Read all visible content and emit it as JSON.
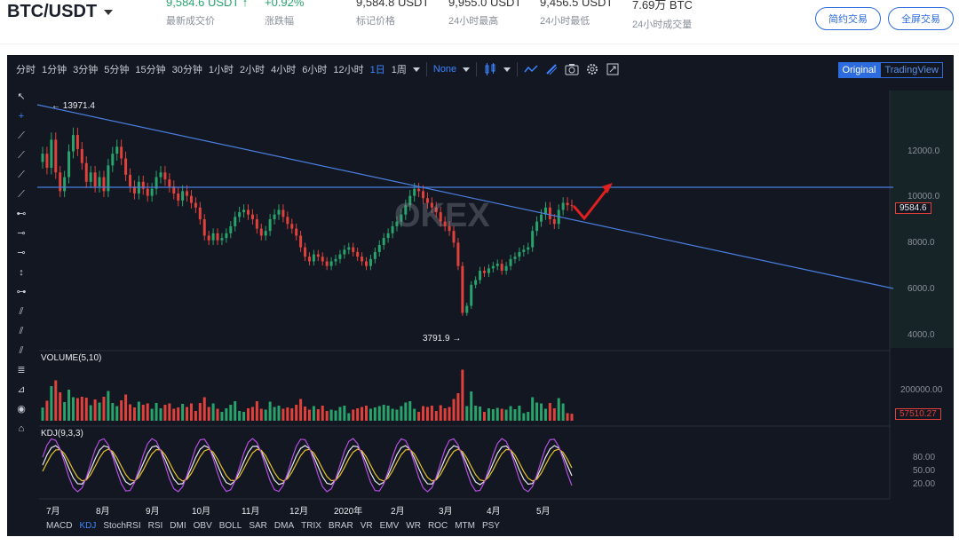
{
  "header": {
    "pair": "BTC/USDT",
    "stats": [
      {
        "value": "9,584.6 USDT ↑",
        "label": "最新成交价",
        "green": true
      },
      {
        "value": "+0.92%",
        "label": "涨跌幅",
        "green": true
      },
      {
        "value": "9,584.8 USDT",
        "label": "标记价格"
      },
      {
        "value": "9,955.0 USDT",
        "label": "24小时最高"
      },
      {
        "value": "9,456.5 USDT",
        "label": "24小时最低"
      },
      {
        "value": "7.69万 BTC",
        "label": "24小时成交量"
      }
    ],
    "btn_contract": "简约交易",
    "btn_fullscreen": "全屏交易"
  },
  "toolbar": {
    "intervals": [
      "分时",
      "1分钟",
      "3分钟",
      "5分钟",
      "15分钟",
      "30分钟",
      "1小时",
      "2小时",
      "4小时",
      "6小时",
      "12小时",
      "1日",
      "1周"
    ],
    "active_interval": "1日",
    "indicator": "None",
    "view_original": "Original",
    "view_tv": "TradingView"
  },
  "chart": {
    "high_label": "← 13971.4",
    "low_label": "3791.9 →",
    "price_ticks": [
      "12000.0",
      "10000.0",
      "8000.0",
      "6000.0",
      "4000.0"
    ],
    "last_price": "9584.6",
    "volume_title": "VOLUME(5,10)",
    "volume_tick": "200000.00",
    "volume_last": "57510.27",
    "kdj_title": "KDJ(9,3,3)",
    "kdj_ticks": [
      "80.00",
      "50.00",
      "20.00"
    ],
    "watermark": "OKEX"
  },
  "x_axis": [
    "7月",
    "8月",
    "9月",
    "10月",
    "11月",
    "12月",
    "2020年",
    "2月",
    "3月",
    "4月",
    "5月"
  ],
  "indicators": [
    "MACD",
    "KDJ",
    "StochRSI",
    "RSI",
    "DMI",
    "OBV",
    "BOLL",
    "SAR",
    "DMA",
    "TRIX",
    "BRAR",
    "VR",
    "EMV",
    "WR",
    "ROC",
    "MTM",
    "PSY"
  ],
  "active_indicator": "KDJ",
  "chart_data": {
    "type": "candlestick",
    "y_range": [
      3500,
      14500
    ],
    "closes": [
      11800,
      11200,
      12400,
      11000,
      10200,
      10800,
      11900,
      12600,
      12000,
      11400,
      10600,
      11000,
      10400,
      10800,
      10200,
      11300,
      11800,
      12100,
      11600,
      10900,
      10400,
      10100,
      10600,
      10300,
      10000,
      10300,
      10800,
      11000,
      10700,
      10400,
      10100,
      9800,
      10200,
      10000,
      9700,
      9500,
      9000,
      8300,
      8100,
      8400,
      8100,
      8200,
      8400,
      8700,
      9100,
      9300,
      9400,
      9200,
      9000,
      8600,
      8300,
      8500,
      9000,
      9200,
      9400,
      9100,
      8800,
      8600,
      8300,
      7800,
      7400,
      7200,
      7500,
      7400,
      7200,
      7000,
      7200,
      7300,
      7500,
      7700,
      7800,
      7600,
      7400,
      7200,
      7000,
      7300,
      7600,
      7900,
      8200,
      8400,
      8700,
      8900,
      9200,
      9600,
      10000,
      10300,
      10200,
      9900,
      9700,
      9500,
      9300,
      8900,
      8700,
      8500,
      8000,
      7000,
      5000,
      5300,
      6200,
      6400,
      6800,
      6700,
      6900,
      7000,
      7100,
      6800,
      7000,
      7300,
      7400,
      7600,
      7700,
      7800,
      8500,
      8900,
      9200,
      9500,
      9000,
      8800,
      9400,
      9700,
      9600,
      9584
    ]
  }
}
